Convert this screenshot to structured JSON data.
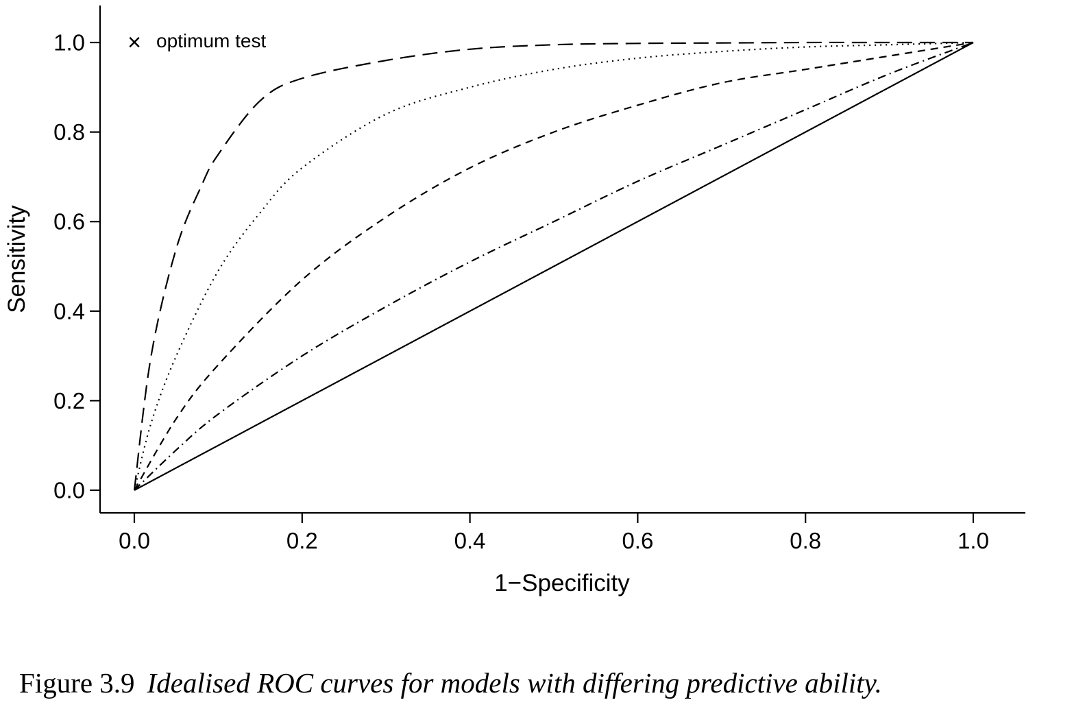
{
  "chart_data": {
    "type": "line",
    "xlabel": "1−Specificity",
    "ylabel": "Sensitivity",
    "xlim": [
      0,
      1
    ],
    "ylim": [
      0,
      1
    ],
    "x_ticks": [
      "0.0",
      "0.2",
      "0.4",
      "0.6",
      "0.8",
      "1.0"
    ],
    "y_ticks": [
      "0.0",
      "0.2",
      "0.4",
      "0.6",
      "0.8",
      "1.0"
    ],
    "grid": false,
    "legend": {
      "position": "top-left",
      "entries": [
        {
          "marker": "×",
          "label": "optimum test"
        }
      ]
    },
    "optimum_point": {
      "x": 0.0,
      "y": 1.0
    },
    "series": [
      {
        "line_style": "long-dash",
        "x": [
          0,
          0.02,
          0.05,
          0.08,
          0.1,
          0.15,
          0.2,
          0.3,
          0.4,
          0.5,
          0.6,
          0.7,
          0.8,
          0.9,
          1.0
        ],
        "y": [
          0,
          0.3,
          0.54,
          0.68,
          0.75,
          0.87,
          0.92,
          0.96,
          0.985,
          0.995,
          0.998,
          0.999,
          1.0,
          1.0,
          1.0
        ]
      },
      {
        "line_style": "dotted",
        "x": [
          0,
          0.02,
          0.05,
          0.1,
          0.15,
          0.2,
          0.3,
          0.4,
          0.5,
          0.6,
          0.7,
          0.8,
          0.9,
          1.0
        ],
        "y": [
          0,
          0.15,
          0.3,
          0.49,
          0.62,
          0.72,
          0.84,
          0.9,
          0.94,
          0.965,
          0.98,
          0.99,
          0.995,
          1.0
        ]
      },
      {
        "line_style": "short-dash",
        "x": [
          0,
          0.05,
          0.1,
          0.2,
          0.3,
          0.4,
          0.5,
          0.6,
          0.7,
          0.8,
          0.9,
          1.0
        ],
        "y": [
          0,
          0.16,
          0.28,
          0.47,
          0.61,
          0.72,
          0.8,
          0.86,
          0.91,
          0.94,
          0.97,
          1.0
        ]
      },
      {
        "line_style": "dot-dash",
        "x": [
          0,
          0.05,
          0.1,
          0.2,
          0.3,
          0.4,
          0.5,
          0.6,
          0.7,
          0.8,
          0.9,
          1.0
        ],
        "y": [
          0,
          0.09,
          0.17,
          0.3,
          0.41,
          0.51,
          0.6,
          0.69,
          0.77,
          0.85,
          0.93,
          1.0
        ]
      },
      {
        "line_style": "solid",
        "x": [
          0,
          1.0
        ],
        "y": [
          0,
          1.0
        ]
      }
    ]
  },
  "caption": {
    "number": "Figure 3.9",
    "text": "Idealised ROC curves for models with differing predictive ability."
  }
}
